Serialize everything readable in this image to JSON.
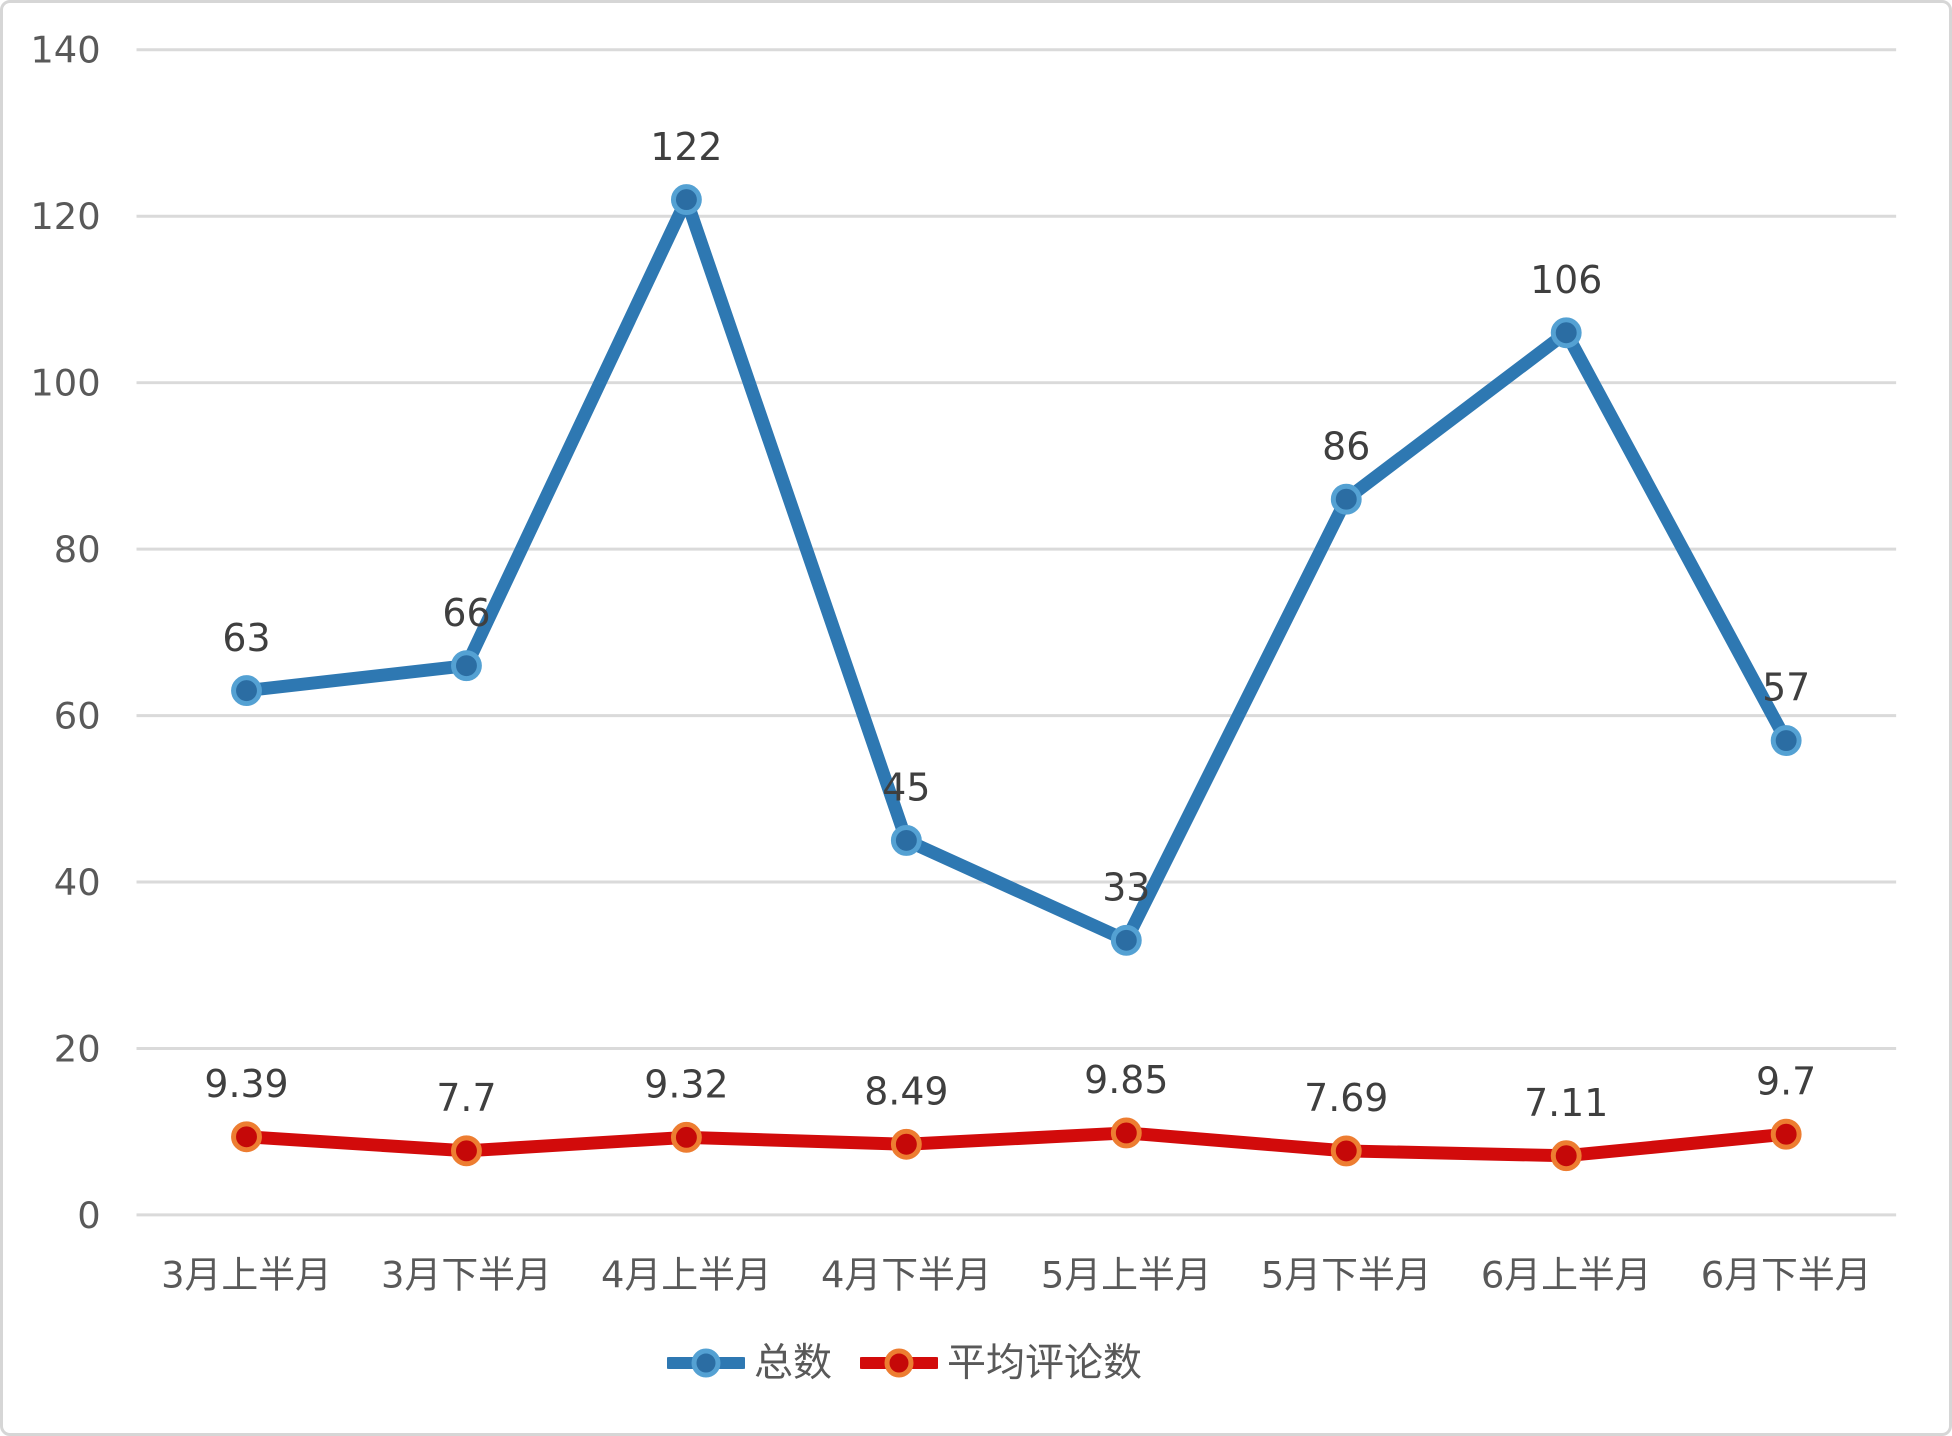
{
  "chart_data": {
    "type": "line",
    "title": "",
    "xlabel": "",
    "ylabel": "",
    "categories": [
      "3月上半月",
      "3月下半月",
      "4月上半月",
      "4月下半月",
      "5月上半月",
      "5月下半月",
      "6月上半月",
      "6月下半月"
    ],
    "series": [
      {
        "name": "总数",
        "values": [
          63,
          66,
          122,
          45,
          33,
          86,
          106,
          57
        ],
        "data_labels": [
          "63",
          "66",
          "122",
          "45",
          "33",
          "86",
          "106",
          "57"
        ],
        "line_color": "#2E78B2",
        "marker_fill": "#2B6DA3",
        "marker_stroke": "#54A1D3"
      },
      {
        "name": "平均评论数",
        "values": [
          9.39,
          7.7,
          9.32,
          8.49,
          9.85,
          7.69,
          7.11,
          9.7
        ],
        "data_labels": [
          "9.39",
          "7.7",
          "9.32",
          "8.49",
          "9.85",
          "7.69",
          "7.11",
          "9.7"
        ],
        "line_color": "#D20B0B",
        "marker_fill": "#C50808",
        "marker_stroke": "#ED7D31"
      }
    ],
    "ylim": [
      0,
      140
    ],
    "ytick_step": 20,
    "ytick_labels": [
      "0",
      "20",
      "40",
      "60",
      "80",
      "100",
      "120",
      "140"
    ],
    "grid": true,
    "legend_position": "bottom"
  },
  "styles": {
    "background": "#FFFFFF",
    "frame_border_color": "#D6D6D6",
    "gridline_color": "#DADADA",
    "axis_label_color": "#595959",
    "data_label_color": "#3F3F3F",
    "legend_text_color": "#595959"
  }
}
